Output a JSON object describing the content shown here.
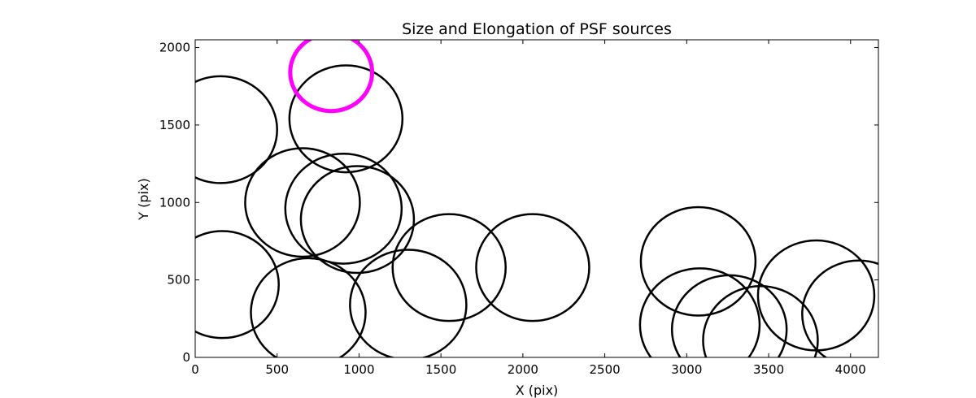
{
  "chart_data": {
    "type": "scatter",
    "title": "Size and Elongation of PSF sources",
    "xlabel": "X (pix)",
    "ylabel": "Y (pix)",
    "xlim": [
      0,
      4170
    ],
    "ylim": [
      0,
      2050
    ],
    "x_ticks": [
      0,
      500,
      1000,
      1500,
      2000,
      2500,
      3000,
      3500,
      4000
    ],
    "y_ticks": [
      0,
      500,
      1000,
      1500,
      2000
    ],
    "grid": false,
    "highlight_color": "#ff00ff",
    "marker_color": "#000000",
    "sources": [
      {
        "x": 155,
        "y": 1470,
        "rx": 345,
        "ry": 345
      },
      {
        "x": 920,
        "y": 1540,
        "rx": 345,
        "ry": 345
      },
      {
        "x": 655,
        "y": 1000,
        "rx": 350,
        "ry": 350
      },
      {
        "x": 905,
        "y": 960,
        "rx": 355,
        "ry": 355
      },
      {
        "x": 990,
        "y": 890,
        "rx": 345,
        "ry": 345
      },
      {
        "x": 165,
        "y": 470,
        "rx": 345,
        "ry": 345
      },
      {
        "x": 690,
        "y": 290,
        "rx": 350,
        "ry": 350
      },
      {
        "x": 1300,
        "y": 340,
        "rx": 355,
        "ry": 355
      },
      {
        "x": 1550,
        "y": 580,
        "rx": 345,
        "ry": 345
      },
      {
        "x": 2060,
        "y": 580,
        "rx": 345,
        "ry": 345
      },
      {
        "x": 3070,
        "y": 620,
        "rx": 350,
        "ry": 350
      },
      {
        "x": 3080,
        "y": 210,
        "rx": 365,
        "ry": 365
      },
      {
        "x": 3260,
        "y": 180,
        "rx": 350,
        "ry": 350
      },
      {
        "x": 3450,
        "y": 110,
        "rx": 350,
        "ry": 350
      },
      {
        "x": 3790,
        "y": 400,
        "rx": 355,
        "ry": 355
      },
      {
        "x": 4050,
        "y": 280,
        "rx": 345,
        "ry": 345
      }
    ],
    "highlight": {
      "x": 830,
      "y": 1840,
      "rx": 250,
      "ry": 250
    }
  }
}
